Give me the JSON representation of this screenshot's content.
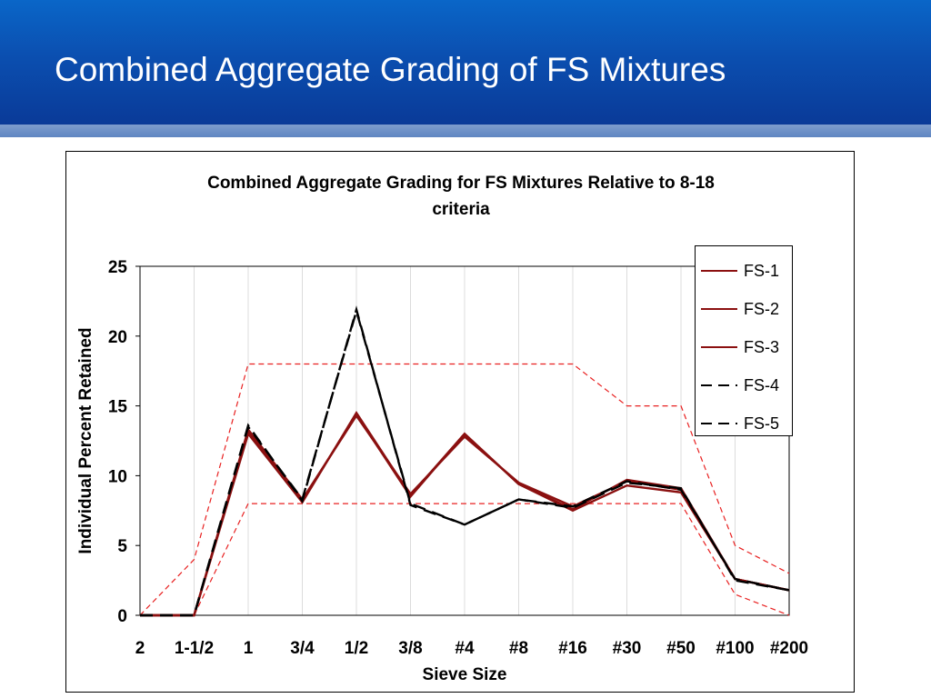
{
  "slide": {
    "title": "Combined Aggregate Grading of FS Mixtures"
  },
  "colors": {
    "header_top": "#0a66c8",
    "header_bottom": "#0a3a98",
    "stripe": "#6f91c8",
    "series_red": "#8b1010",
    "series_black": "#000000",
    "limits": "#e82020"
  },
  "chart_data": {
    "type": "line",
    "title": "Combined Aggregate Grading for FS Mixtures Relative to 8-18 criteria",
    "title_lines": [
      "Combined Aggregate Grading for FS Mixtures Relative to 8-18",
      "criteria"
    ],
    "xlabel": "Sieve Size",
    "ylabel": "Individual Percent Retained",
    "categories": [
      "2",
      "1-1/2",
      "1",
      "3/4",
      "1/2",
      "3/8",
      "#4",
      "#8",
      "#16",
      "#30",
      "#50",
      "#100",
      "#200"
    ],
    "ylim": [
      0,
      25
    ],
    "yticks": [
      0,
      5,
      10,
      15,
      20,
      25
    ],
    "grid": "vertical",
    "legend_position": "top-right",
    "series": [
      {
        "name": "FS-1",
        "style": "solid",
        "color": "#8b1010",
        "values": [
          0,
          0,
          13.0,
          8.1,
          14.5,
          8.6,
          13.0,
          9.4,
          7.5,
          9.3,
          8.8,
          2.6,
          1.8
        ]
      },
      {
        "name": "FS-2",
        "style": "solid",
        "color": "#8b1010",
        "values": [
          0,
          0,
          13.3,
          8.3,
          14.3,
          8.7,
          12.8,
          9.5,
          7.8,
          9.6,
          9.0,
          2.6,
          1.8
        ]
      },
      {
        "name": "FS-3",
        "style": "solid",
        "color": "#8b1010",
        "values": [
          0,
          0,
          13.2,
          8.2,
          14.4,
          8.5,
          13.0,
          9.4,
          7.6,
          9.7,
          9.1,
          2.6,
          1.8
        ]
      },
      {
        "name": "FS-4",
        "style": "dashed",
        "color": "#000000",
        "values": [
          0,
          0,
          13.6,
          8.2,
          21.9,
          7.9,
          6.5,
          8.3,
          7.7,
          9.5,
          9.1,
          2.5,
          1.8
        ]
      },
      {
        "name": "FS-5",
        "style": "dashed",
        "color": "#000000",
        "values": [
          0,
          0,
          13.5,
          8.3,
          21.8,
          8.0,
          6.5,
          8.3,
          7.8,
          9.6,
          9.0,
          2.6,
          1.8
        ]
      }
    ],
    "limits": [
      {
        "style": "dashed",
        "color": "#e82020",
        "values": [
          0,
          4,
          18,
          18,
          18,
          18,
          18,
          18,
          18,
          15,
          15,
          5,
          3
        ]
      },
      {
        "style": "dashed",
        "color": "#e82020",
        "values": [
          0,
          0,
          8,
          8,
          8,
          8,
          8,
          8,
          8,
          8,
          8,
          1.5,
          0
        ]
      }
    ]
  }
}
